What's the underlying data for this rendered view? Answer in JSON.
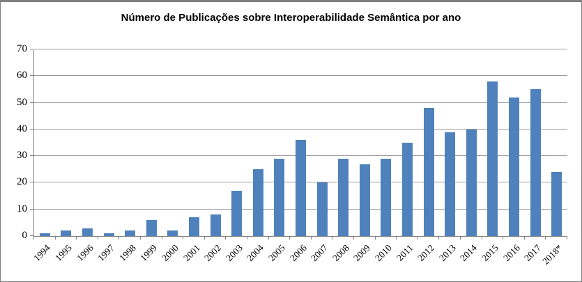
{
  "chart_data": {
    "type": "bar",
    "title": "Número de Publicações sobre Interoperabilidade Semântica por ano",
    "categories": [
      "1994",
      "1995",
      "1996",
      "1997",
      "1998",
      "1999",
      "2000",
      "2001",
      "2002",
      "2003",
      "2004",
      "2005",
      "2006",
      "2007",
      "2008",
      "2009",
      "2010",
      "2011",
      "2012",
      "2013",
      "2014",
      "2015",
      "2016",
      "2017",
      "2018*"
    ],
    "values": [
      1,
      2,
      3,
      1,
      2,
      6,
      2,
      7,
      8,
      17,
      25,
      29,
      36,
      20,
      29,
      27,
      29,
      35,
      48,
      39,
      40,
      58,
      52,
      55,
      24
    ],
    "xlabel": "",
    "ylabel": "",
    "ylim": [
      0,
      70
    ],
    "yticks": [
      0,
      10,
      20,
      30,
      40,
      50,
      60,
      70
    ],
    "grid": true,
    "legend": false,
    "colors": {
      "bar": "#4F81BD",
      "gridline": "#9B9B9B",
      "axis": "#808080",
      "frame": "#7F7F7F",
      "background": "#FFFFFF",
      "text": "#000000"
    }
  }
}
